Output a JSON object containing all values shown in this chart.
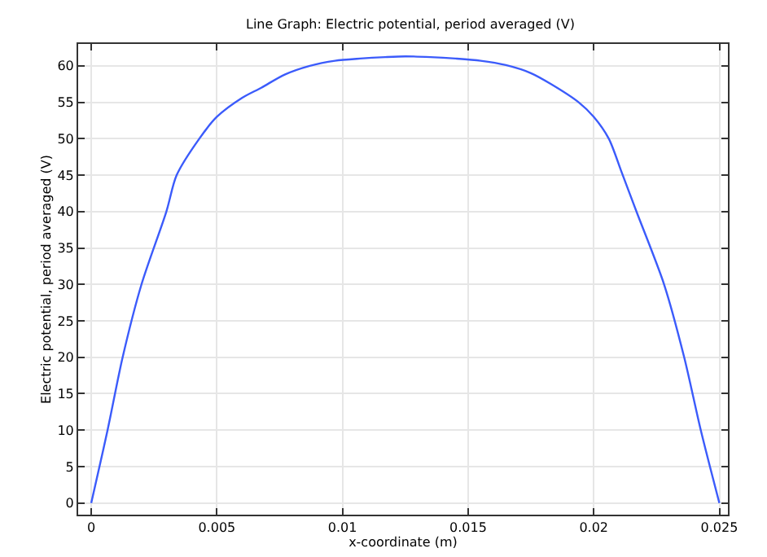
{
  "chart_data": {
    "type": "line",
    "title": "Line Graph: Electric potential, period averaged (V)",
    "xlabel": "x-coordinate (m)",
    "ylabel": "Electric potential, period averaged (V)",
    "x": [
      0,
      0.00065,
      0.00125,
      0.002,
      0.00299,
      0.0034,
      0.0043,
      0.005,
      0.006,
      0.00677,
      0.0077,
      0.0087,
      0.0097,
      0.0107,
      0.0117,
      0.0125,
      0.0135,
      0.0145,
      0.0155,
      0.0165,
      0.0175,
      0.0183,
      0.0194,
      0.02,
      0.0206,
      0.0211,
      0.0217,
      0.0228,
      0.0236,
      0.02426,
      0.025
    ],
    "series": [
      {
        "color": "#3b5bfb",
        "values": [
          0,
          10,
          20,
          30,
          40,
          45,
          50,
          53,
          55.6,
          57,
          58.8,
          60,
          60.7,
          61,
          61.2,
          61.3,
          61.2,
          61,
          60.7,
          60.1,
          59,
          57.5,
          55,
          53,
          50,
          45.5,
          40,
          30,
          20,
          10,
          0
        ]
      }
    ],
    "xlim": [
      -0.00052,
      0.02534
    ],
    "ylim": [
      -1.6,
      63
    ],
    "xticks": [
      0,
      0.005,
      0.01,
      0.015,
      0.02,
      0.025
    ],
    "yticks": [
      0,
      5,
      10,
      15,
      20,
      25,
      30,
      35,
      40,
      45,
      50,
      55,
      60
    ],
    "grid": true
  }
}
